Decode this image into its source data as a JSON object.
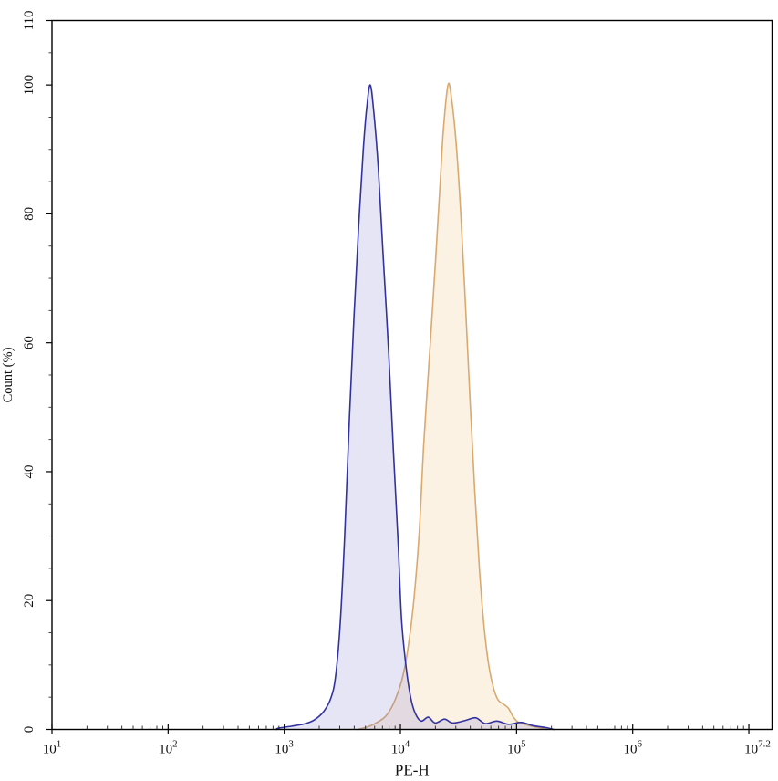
{
  "chart_data": {
    "type": "area",
    "subtype": "flow-cytometry-histogram-overlay",
    "title": "",
    "xlabel": "PE-H",
    "ylabel": "Count (%)",
    "x_scale": "log10",
    "x_log_range": [
      1,
      7.2
    ],
    "ylim": [
      0,
      110
    ],
    "grid": false,
    "legend": "none",
    "background": "#ffffff",
    "frame_color": "#000000",
    "x_ticks": {
      "major_logs": [
        1,
        2,
        3,
        4,
        5,
        6,
        7
      ],
      "labeled": [
        {
          "log": 1,
          "base": "10",
          "exp": "1"
        },
        {
          "log": 2,
          "base": "10",
          "exp": "2"
        },
        {
          "log": 3,
          "base": "10",
          "exp": "3"
        },
        {
          "log": 4,
          "base": "10",
          "exp": "4"
        },
        {
          "log": 5,
          "base": "10",
          "exp": "5"
        },
        {
          "log": 6,
          "base": "10",
          "exp": "6"
        },
        {
          "log": 7.2,
          "base": "10",
          "exp": "7.2",
          "edge": true
        }
      ],
      "minor_factors": [
        2,
        3,
        4,
        5,
        6,
        7,
        8,
        9
      ]
    },
    "y_ticks": {
      "labeled_values": [
        0,
        20,
        40,
        60,
        80,
        100,
        110
      ],
      "minor_step": 5
    },
    "series": [
      {
        "name": "orange-histogram",
        "color_stroke": "#d9a96f",
        "color_fill": "rgba(240,190,120,0.20)",
        "peak_x": 26000,
        "peak_y": 100,
        "points": [
          [
            3.63,
            0
          ],
          [
            3.7,
            0.3
          ],
          [
            3.77,
            0.8
          ],
          [
            3.87,
            2
          ],
          [
            3.94,
            4
          ],
          [
            4.01,
            7.5
          ],
          [
            4.06,
            12
          ],
          [
            4.11,
            19
          ],
          [
            4.16,
            30
          ],
          [
            4.2,
            44
          ],
          [
            4.25,
            58
          ],
          [
            4.3,
            72
          ],
          [
            4.34,
            84
          ],
          [
            4.37,
            93
          ],
          [
            4.41,
            100
          ],
          [
            4.44,
            98
          ],
          [
            4.48,
            91
          ],
          [
            4.52,
            80
          ],
          [
            4.56,
            66
          ],
          [
            4.6,
            51
          ],
          [
            4.64,
            37
          ],
          [
            4.68,
            25
          ],
          [
            4.72,
            16
          ],
          [
            4.76,
            10
          ],
          [
            4.8,
            6.5
          ],
          [
            4.84,
            4.6
          ],
          [
            4.89,
            3.9
          ],
          [
            4.93,
            3.3
          ],
          [
            4.97,
            2.0
          ],
          [
            5.01,
            1.2
          ],
          [
            5.07,
            0.8
          ],
          [
            5.13,
            0.5
          ],
          [
            5.2,
            0.25
          ],
          [
            5.26,
            0
          ]
        ]
      },
      {
        "name": "blue-histogram",
        "color_stroke": "#32329e",
        "color_fill": "rgba(110,110,205,0.18)",
        "peak_x": 5500,
        "peak_y": 100,
        "points": [
          [
            2.93,
            0
          ],
          [
            2.95,
            0.2
          ],
          [
            3.06,
            0.5
          ],
          [
            3.18,
            0.9
          ],
          [
            3.26,
            1.5
          ],
          [
            3.34,
            2.8
          ],
          [
            3.4,
            4.8
          ],
          [
            3.44,
            8
          ],
          [
            3.48,
            16
          ],
          [
            3.52,
            30
          ],
          [
            3.56,
            48
          ],
          [
            3.6,
            64
          ],
          [
            3.64,
            78
          ],
          [
            3.68,
            90
          ],
          [
            3.71,
            96.5
          ],
          [
            3.74,
            100
          ],
          [
            3.77,
            96
          ],
          [
            3.81,
            87
          ],
          [
            3.85,
            74
          ],
          [
            3.9,
            58
          ],
          [
            3.94,
            43
          ],
          [
            3.98,
            29
          ],
          [
            4.01,
            17
          ],
          [
            4.05,
            9.5
          ],
          [
            4.09,
            4.8
          ],
          [
            4.13,
            2.4
          ],
          [
            4.18,
            1.3
          ],
          [
            4.24,
            1.9
          ],
          [
            4.3,
            1.0
          ],
          [
            4.38,
            1.6
          ],
          [
            4.45,
            1.0
          ],
          [
            4.56,
            1.4
          ],
          [
            4.65,
            1.8
          ],
          [
            4.73,
            0.9
          ],
          [
            4.83,
            1.3
          ],
          [
            4.93,
            0.8
          ],
          [
            5.04,
            1.1
          ],
          [
            5.14,
            0.6
          ],
          [
            5.25,
            0.3
          ],
          [
            5.32,
            0
          ]
        ]
      }
    ]
  }
}
